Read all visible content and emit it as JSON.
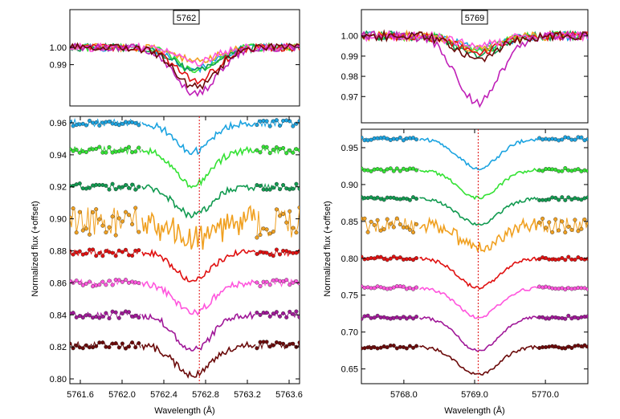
{
  "chart_data": [
    {
      "type": "line",
      "title": "5762",
      "ylabel": "Normalized flux (+offset)",
      "xlabel": "Wavelength (Å)",
      "xlim": [
        5761.5,
        5763.7
      ],
      "xticks": [
        "5761.6",
        "5762.0",
        "5762.4",
        "5762.8",
        "5763.2",
        "5763.6"
      ],
      "top_panel": {
        "ylim": [
          0.966,
          1.022
        ],
        "yticks": [
          "0.99",
          "1.00"
        ],
        "series": [
          {
            "name": "blue",
            "color": "#1ba3e0",
            "depth": 0.012,
            "width": 0.2
          },
          {
            "name": "green",
            "color": "#34e234",
            "depth": 0.014,
            "width": 0.18
          },
          {
            "name": "dark-green",
            "color": "#119a50",
            "depth": 0.013,
            "width": 0.2
          },
          {
            "name": "orange",
            "color": "#f0a020",
            "depth": 0.008,
            "width": 0.18
          },
          {
            "name": "red",
            "color": "#e01010",
            "depth": 0.019,
            "width": 0.2
          },
          {
            "name": "pink",
            "color": "#ff55dd",
            "depth": 0.009,
            "width": 0.18
          },
          {
            "name": "magenta",
            "color": "#c020b8",
            "depth": 0.027,
            "width": 0.2
          },
          {
            "name": "dark-red",
            "color": "#6b0a0a",
            "depth": 0.023,
            "width": 0.2
          }
        ]
      },
      "bottom_panel": {
        "ylim": [
          0.797,
          0.964
        ],
        "yticks": [
          "0.80",
          "0.82",
          "0.84",
          "0.86",
          "0.88",
          "0.90",
          "0.92",
          "0.94",
          "0.96"
        ],
        "line_center": 5762.74,
        "spectra": [
          {
            "name": "blue",
            "color": "#1ba3e0",
            "offset": 0.96,
            "depth": 0.018
          },
          {
            "name": "green",
            "color": "#34e234",
            "offset": 0.943,
            "depth": 0.022
          },
          {
            "name": "dark-green",
            "color": "#119a50",
            "offset": 0.92,
            "depth": 0.018
          },
          {
            "name": "orange",
            "color": "#f0a020",
            "offset": 0.898,
            "depth": 0.012
          },
          {
            "name": "red",
            "color": "#e01010",
            "offset": 0.879,
            "depth": 0.017
          },
          {
            "name": "pink",
            "color": "#ff55dd",
            "offset": 0.86,
            "depth": 0.019
          },
          {
            "name": "purple",
            "color": "#a01898",
            "offset": 0.84,
            "depth": 0.022
          },
          {
            "name": "dark-red",
            "color": "#6b0a0a",
            "offset": 0.821,
            "depth": 0.019
          }
        ]
      }
    },
    {
      "type": "line",
      "title": "5769",
      "ylabel": "Normalized flux (+offset)",
      "xlabel": "Wavelength (Å)",
      "xlim": [
        5767.4,
        5770.6
      ],
      "xticks": [
        "5768.0",
        "5769.0",
        "5770.0"
      ],
      "top_panel": {
        "ylim": [
          0.957,
          1.013
        ],
        "yticks": [
          "0.97",
          "0.98",
          "0.99",
          "1.00"
        ],
        "series": [
          {
            "name": "blue",
            "color": "#1ba3e0",
            "depth": 0.006,
            "width": 0.3
          },
          {
            "name": "green",
            "color": "#34e234",
            "depth": 0.007,
            "width": 0.3
          },
          {
            "name": "dark-green",
            "color": "#119a50",
            "depth": 0.009,
            "width": 0.3
          },
          {
            "name": "orange",
            "color": "#f0a020",
            "depth": 0.006,
            "width": 0.3
          },
          {
            "name": "red",
            "color": "#e01010",
            "depth": 0.008,
            "width": 0.3
          },
          {
            "name": "pink",
            "color": "#ff55dd",
            "depth": 0.005,
            "width": 0.3
          },
          {
            "name": "magenta",
            "color": "#c020b8",
            "depth": 0.033,
            "width": 0.3
          },
          {
            "name": "dark-red",
            "color": "#6b0a0a",
            "depth": 0.011,
            "width": 0.3
          }
        ]
      },
      "bottom_panel": {
        "ylim": [
          0.63,
          0.975
        ],
        "yticks": [
          "0.65",
          "0.70",
          "0.75",
          "0.80",
          "0.85",
          "0.90",
          "0.95"
        ],
        "line_center": 5769.05,
        "spectra": [
          {
            "name": "blue",
            "color": "#1ba3e0",
            "offset": 0.962,
            "depth": 0.04
          },
          {
            "name": "green",
            "color": "#34e234",
            "offset": 0.92,
            "depth": 0.038
          },
          {
            "name": "dark-green",
            "color": "#119a50",
            "offset": 0.881,
            "depth": 0.035
          },
          {
            "name": "orange",
            "color": "#f0a020",
            "offset": 0.845,
            "depth": 0.03
          },
          {
            "name": "red",
            "color": "#e01010",
            "offset": 0.8,
            "depth": 0.04
          },
          {
            "name": "pink",
            "color": "#ff55dd",
            "offset": 0.76,
            "depth": 0.04
          },
          {
            "name": "purple",
            "color": "#a01898",
            "offset": 0.72,
            "depth": 0.045
          },
          {
            "name": "dark-red",
            "color": "#6b0a0a",
            "offset": 0.68,
            "depth": 0.038
          }
        ]
      }
    }
  ]
}
